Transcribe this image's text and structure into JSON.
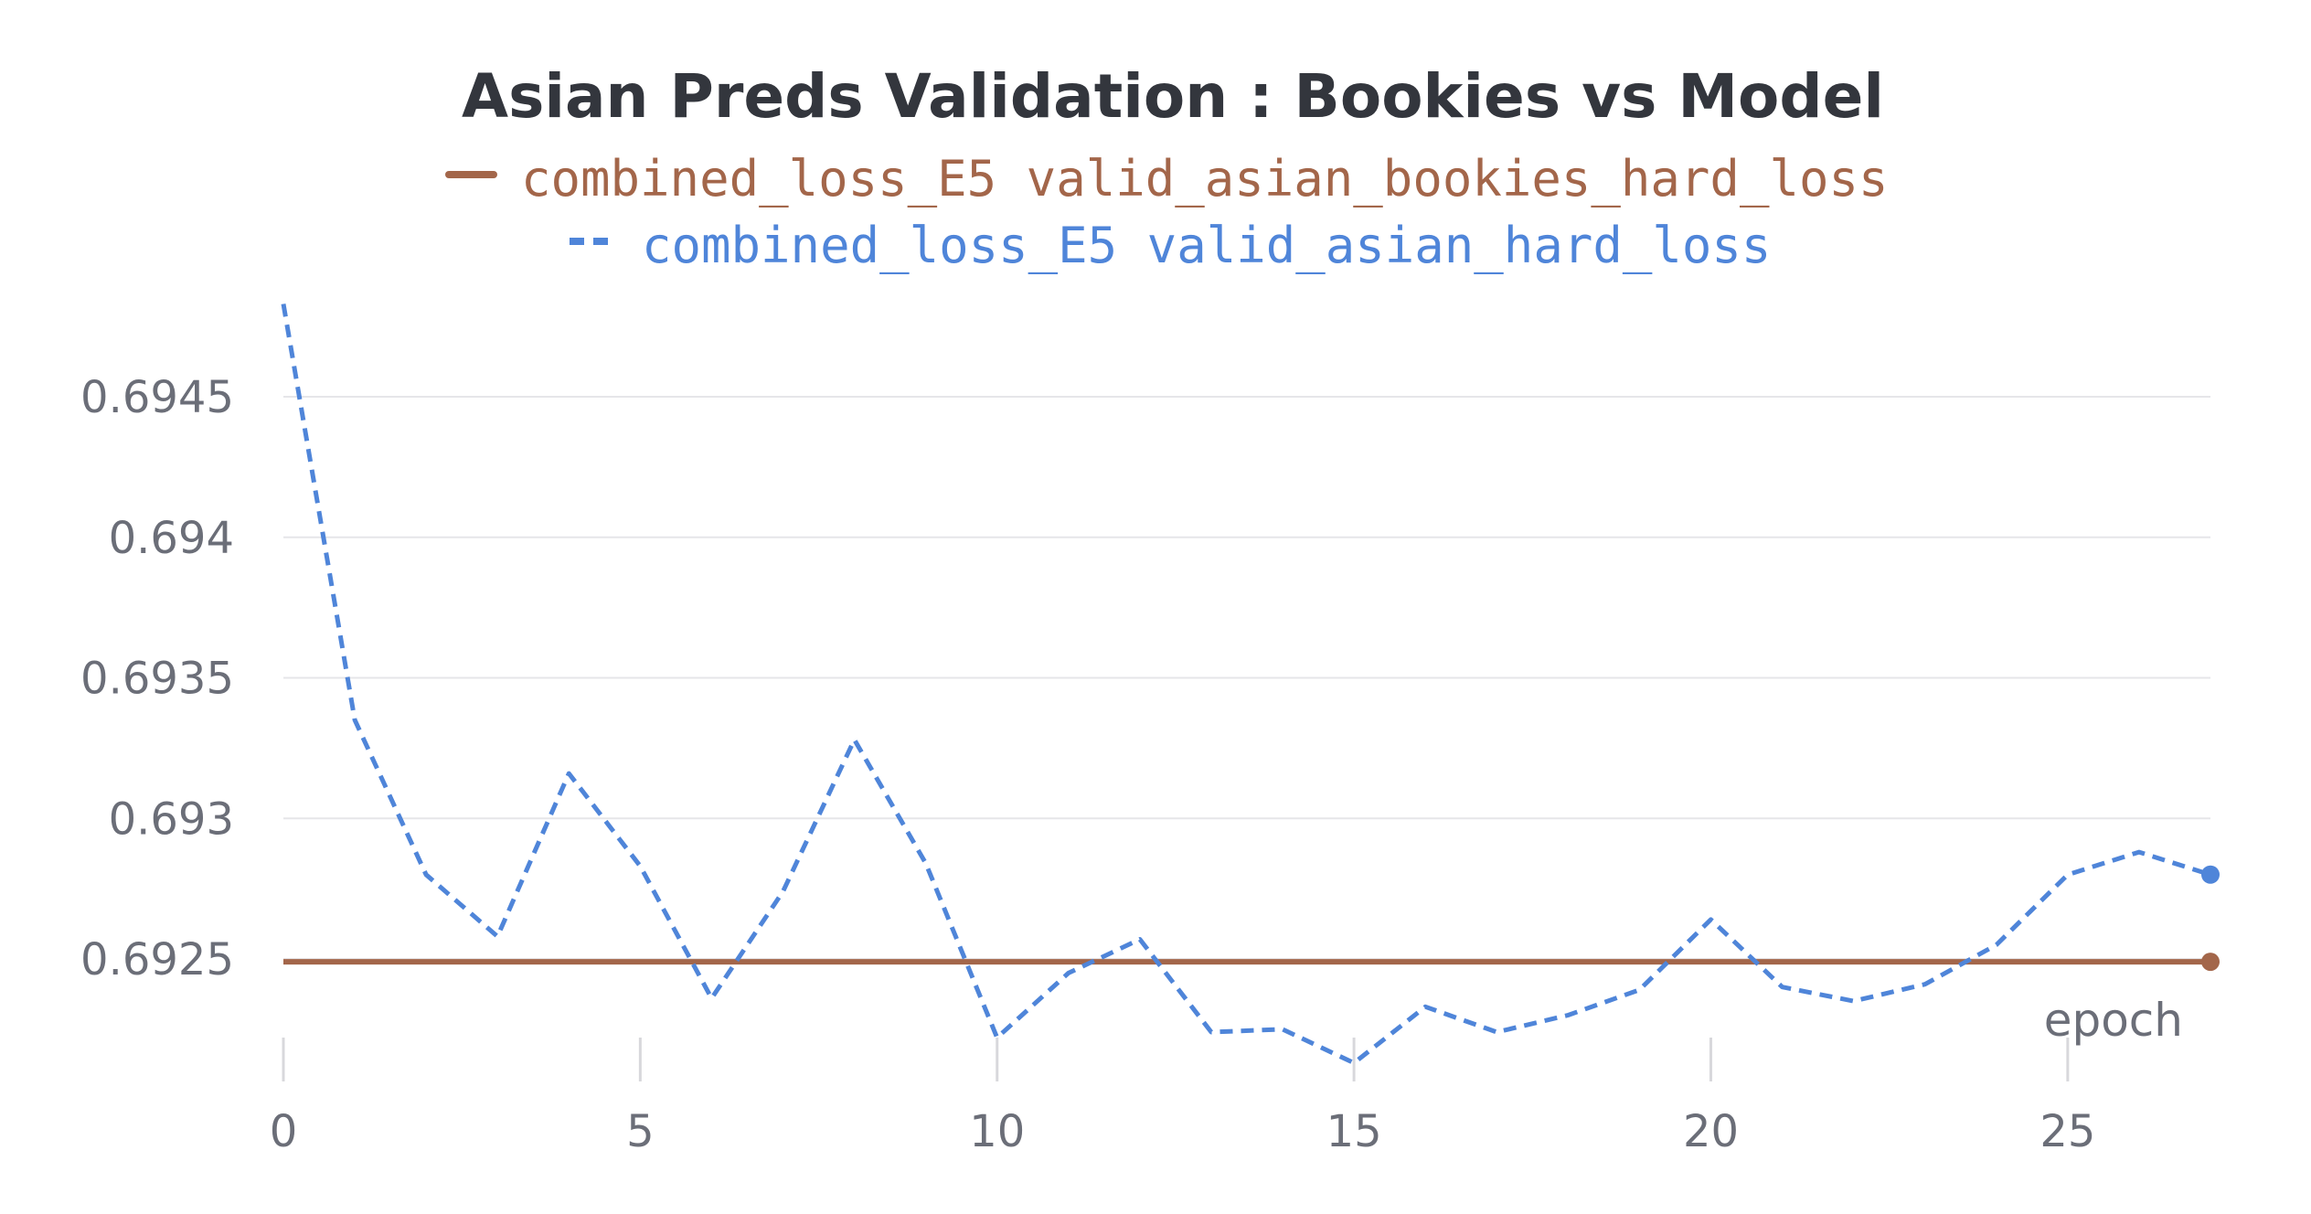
{
  "chart_data": {
    "type": "line",
    "title": "Asian Preds Validation : Bookies vs Model",
    "xlabel": "epoch",
    "ylabel": "",
    "xlim": [
      0,
      27
    ],
    "ylim": [
      0.6921,
      0.6948
    ],
    "x_ticks": [
      0,
      5,
      10,
      15,
      20,
      25
    ],
    "y_ticks": [
      0.6925,
      0.693,
      0.6935,
      0.694,
      0.6945
    ],
    "y_tick_labels": [
      "0.6925",
      "0.693",
      "0.6935",
      "0.694",
      "0.6945"
    ],
    "grid": "horizontal",
    "legend_position": "top-center",
    "x": [
      0,
      1,
      2,
      3,
      4,
      5,
      6,
      7,
      8,
      9,
      10,
      11,
      12,
      13,
      14,
      15,
      16,
      17,
      18,
      19,
      20,
      21,
      22,
      23,
      24,
      25,
      26,
      27
    ],
    "series": [
      {
        "name": "combined_loss_E5 valid_asian_bookies_hard_loss",
        "color": "#a3664a",
        "style": "solid",
        "values": [
          0.69249,
          0.69249,
          0.69249,
          0.69249,
          0.69249,
          0.69249,
          0.69249,
          0.69249,
          0.69249,
          0.69249,
          0.69249,
          0.69249,
          0.69249,
          0.69249,
          0.69249,
          0.69249,
          0.69249,
          0.69249,
          0.69249,
          0.69249,
          0.69249,
          0.69249,
          0.69249,
          0.69249,
          0.69249,
          0.69249,
          0.69249,
          0.69249
        ]
      },
      {
        "name": "combined_loss_E5 valid_asian_hard_loss",
        "color": "#4f85d9",
        "style": "dashed",
        "values": [
          0.69483,
          0.69335,
          0.6928,
          0.69258,
          0.69316,
          0.69283,
          0.69236,
          0.69274,
          0.69328,
          0.69284,
          0.69222,
          0.69245,
          0.69257,
          0.69224,
          0.69225,
          0.69213,
          0.69233,
          0.69224,
          0.6923,
          0.69239,
          0.69264,
          0.6924,
          0.69235,
          0.69241,
          0.69255,
          0.6928,
          0.69288,
          0.6928
        ]
      }
    ]
  }
}
